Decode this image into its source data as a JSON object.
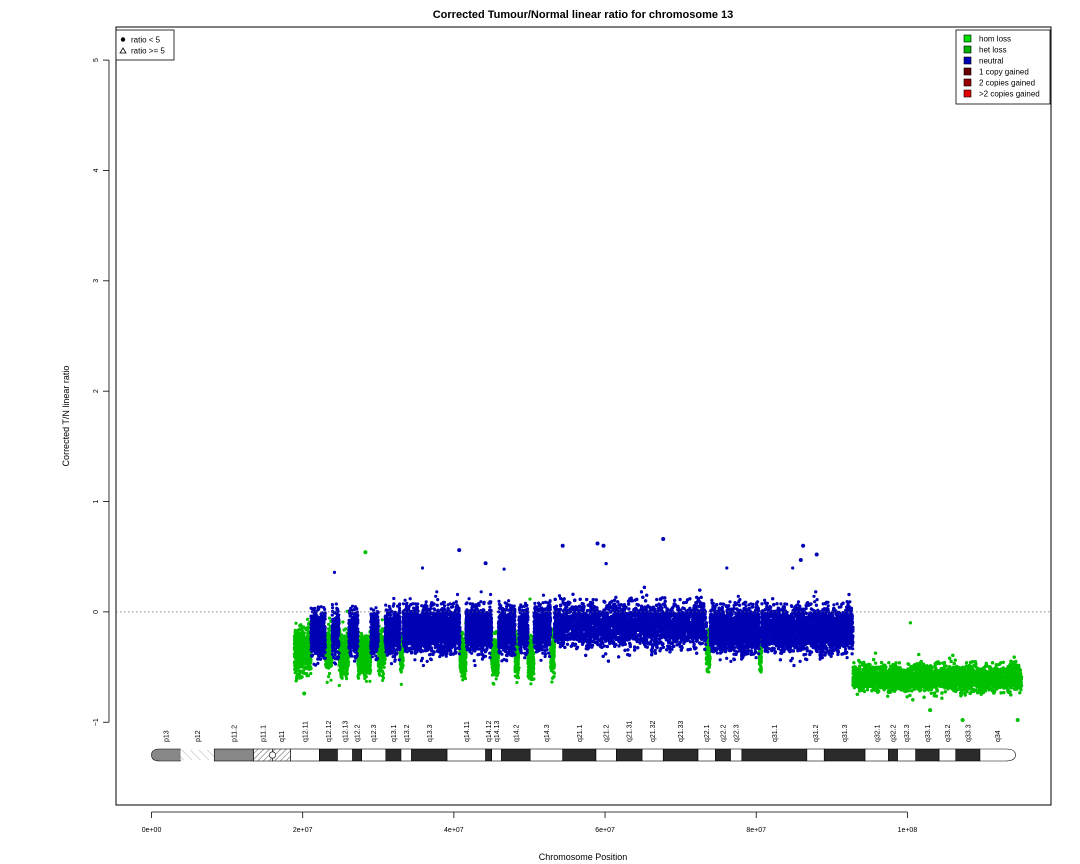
{
  "chart_data": {
    "type": "scatter",
    "title": "Corrected Tumour/Normal linear ratio for chromosome  13",
    "xlabel": "Chromosome Position",
    "ylabel": "Corrected T/N linear ratio",
    "xlim": [
      -4700000,
      119000000
    ],
    "ylim": [
      -1.75,
      5.3
    ],
    "x_ticks": [
      0,
      20000000,
      40000000,
      60000000,
      80000000,
      100000000
    ],
    "x_tick_labels": [
      "0e+00",
      "2e+07",
      "4e+07",
      "6e+07",
      "8e+07",
      "1e+08"
    ],
    "y_ticks": [
      -1,
      0,
      1,
      2,
      3,
      4,
      5
    ],
    "y_tick_labels": [
      "−1",
      "0",
      "1",
      "2",
      "3",
      "4",
      "5"
    ],
    "reference_line": 0,
    "shape_legend": [
      {
        "symbol": "●",
        "label": "ratio < 5"
      },
      {
        "symbol": "△",
        "label": "ratio >= 5"
      }
    ],
    "legend": [
      {
        "label": "hom loss",
        "color": "#00e000"
      },
      {
        "label": "het loss",
        "color": "#00b000"
      },
      {
        "label": "neutral",
        "color": "#0000b4"
      },
      {
        "label": "1 copy gained",
        "color": "#6b0000"
      },
      {
        "label": "2 copies gained",
        "color": "#9a0000"
      },
      {
        "label": ">2 copies gained",
        "color": "#e00000"
      }
    ],
    "series": [
      {
        "name": "het loss",
        "color": "#00c000",
        "segments": [
          {
            "x": [
              18900000,
              21100000
            ],
            "center": -0.34,
            "spread": 0.2
          },
          {
            "x": [
              23000000,
              23900000
            ],
            "center": -0.36,
            "spread": 0.18
          },
          {
            "x": [
              24800000,
              26100000
            ],
            "center": -0.38,
            "spread": 0.18
          },
          {
            "x": [
              27300000,
              29000000
            ],
            "center": -0.4,
            "spread": 0.18
          },
          {
            "x": [
              30000000,
              30900000
            ],
            "center": -0.38,
            "spread": 0.18
          },
          {
            "x": [
              32900000,
              33300000
            ],
            "center": -0.38,
            "spread": 0.17
          },
          {
            "x": [
              40800000,
              41600000
            ],
            "center": -0.4,
            "spread": 0.19
          },
          {
            "x": [
              45000000,
              45900000
            ],
            "center": -0.4,
            "spread": 0.18
          },
          {
            "x": [
              48100000,
              48600000
            ],
            "center": -0.4,
            "spread": 0.18
          },
          {
            "x": [
              49800000,
              50600000
            ],
            "center": -0.42,
            "spread": 0.17
          },
          {
            "x": [
              52800000,
              53300000
            ],
            "center": -0.4,
            "spread": 0.18
          },
          {
            "x": [
              73400000,
              73900000
            ],
            "center": -0.36,
            "spread": 0.18
          },
          {
            "x": [
              80400000,
              80700000
            ],
            "center": -0.36,
            "spread": 0.17
          },
          {
            "x": [
              92800000,
              115100000
            ],
            "center": -0.6,
            "spread": 0.12
          }
        ]
      },
      {
        "name": "neutral",
        "color": "#0000b4",
        "segments": [
          {
            "x": [
              21100000,
              23000000
            ],
            "center": -0.2,
            "spread": 0.2
          },
          {
            "x": [
              23900000,
              24800000
            ],
            "center": -0.2,
            "spread": 0.2
          },
          {
            "x": [
              26100000,
              27300000
            ],
            "center": -0.2,
            "spread": 0.2
          },
          {
            "x": [
              29000000,
              30000000
            ],
            "center": -0.2,
            "spread": 0.2
          },
          {
            "x": [
              30900000,
              32900000
            ],
            "center": -0.18,
            "spread": 0.2
          },
          {
            "x": [
              33300000,
              40800000
            ],
            "center": -0.16,
            "spread": 0.2
          },
          {
            "x": [
              41600000,
              45000000
            ],
            "center": -0.16,
            "spread": 0.2
          },
          {
            "x": [
              45900000,
              48100000
            ],
            "center": -0.17,
            "spread": 0.2
          },
          {
            "x": [
              48600000,
              49800000
            ],
            "center": -0.17,
            "spread": 0.2
          },
          {
            "x": [
              50600000,
              52800000
            ],
            "center": -0.15,
            "spread": 0.2
          },
          {
            "x": [
              53300000,
              73400000
            ],
            "center": -0.12,
            "spread": 0.2
          },
          {
            "x": [
              73900000,
              80400000
            ],
            "center": -0.16,
            "spread": 0.2
          },
          {
            "x": [
              80700000,
              92800000
            ],
            "center": -0.16,
            "spread": 0.2
          }
        ]
      }
    ],
    "outliers": [
      {
        "x": 28300000,
        "y": 0.54,
        "color": "#00c000"
      },
      {
        "x": 40700000,
        "y": 0.56,
        "color": "#0000b4"
      },
      {
        "x": 54400000,
        "y": 0.6,
        "color": "#0000b4"
      },
      {
        "x": 59000000,
        "y": 0.62,
        "color": "#0000b4"
      },
      {
        "x": 59800000,
        "y": 0.6,
        "color": "#0000b4"
      },
      {
        "x": 67700000,
        "y": 0.66,
        "color": "#0000b4"
      },
      {
        "x": 86200000,
        "y": 0.6,
        "color": "#0000b4"
      },
      {
        "x": 88000000,
        "y": 0.52,
        "color": "#0000b4"
      },
      {
        "x": 85900000,
        "y": 0.47,
        "color": "#0000b4"
      },
      {
        "x": 44200000,
        "y": 0.44,
        "color": "#0000b4"
      },
      {
        "x": 114600000,
        "y": -0.98,
        "color": "#00c000"
      },
      {
        "x": 107300000,
        "y": -0.98,
        "color": "#00c000"
      },
      {
        "x": 103000000,
        "y": -0.89,
        "color": "#00c000"
      },
      {
        "x": 20200000,
        "y": -0.74,
        "color": "#00c000"
      }
    ],
    "ideogram": {
      "bands": [
        {
          "name": "p13",
          "start": 0,
          "end": 3800000,
          "stain": "cen-p"
        },
        {
          "name": "p12",
          "start": 3800000,
          "end": 8300000,
          "stain": "stalk"
        },
        {
          "name": "p11.2",
          "start": 8300000,
          "end": 13500000,
          "stain": "gvar"
        },
        {
          "name": "p11.1",
          "start": 13500000,
          "end": 16000000,
          "stain": "hatch"
        },
        {
          "name": "q11",
          "start": 16000000,
          "end": 18400000,
          "stain": "hatch"
        },
        {
          "name": "q12.11",
          "start": 18400000,
          "end": 22200000,
          "stain": "gneg"
        },
        {
          "name": "q12.12",
          "start": 22200000,
          "end": 24600000,
          "stain": "gpos"
        },
        {
          "name": "q12.13",
          "start": 24600000,
          "end": 26600000,
          "stain": "gneg"
        },
        {
          "name": "q12.2",
          "start": 26600000,
          "end": 27800000,
          "stain": "gpos"
        },
        {
          "name": "q12.3",
          "start": 27800000,
          "end": 31000000,
          "stain": "gneg"
        },
        {
          "name": "q13.1",
          "start": 31000000,
          "end": 33000000,
          "stain": "gpos"
        },
        {
          "name": "q13.2",
          "start": 33000000,
          "end": 34400000,
          "stain": "gneg"
        },
        {
          "name": "q13.3",
          "start": 34400000,
          "end": 39100000,
          "stain": "gpos"
        },
        {
          "name": "q14.11",
          "start": 39100000,
          "end": 44200000,
          "stain": "gneg"
        },
        {
          "name": "q14.12",
          "start": 44200000,
          "end": 45000000,
          "stain": "gpos"
        },
        {
          "name": "q14.13",
          "start": 45000000,
          "end": 46300000,
          "stain": "gneg"
        },
        {
          "name": "q14.2",
          "start": 46300000,
          "end": 50100000,
          "stain": "gpos"
        },
        {
          "name": "q14.3",
          "start": 50100000,
          "end": 54400000,
          "stain": "gneg"
        },
        {
          "name": "q21.1",
          "start": 54400000,
          "end": 58800000,
          "stain": "gpos"
        },
        {
          "name": "q21.2",
          "start": 58800000,
          "end": 61500000,
          "stain": "gneg"
        },
        {
          "name": "q21.31",
          "start": 61500000,
          "end": 64900000,
          "stain": "gpos"
        },
        {
          "name": "q21.32",
          "start": 64900000,
          "end": 67700000,
          "stain": "gneg"
        },
        {
          "name": "q21.33",
          "start": 67700000,
          "end": 72300000,
          "stain": "gpos"
        },
        {
          "name": "q22.1",
          "start": 72300000,
          "end": 74600000,
          "stain": "gneg"
        },
        {
          "name": "q22.2",
          "start": 74600000,
          "end": 76600000,
          "stain": "gpos"
        },
        {
          "name": "q22.3",
          "start": 76600000,
          "end": 78100000,
          "stain": "gneg"
        },
        {
          "name": "q31.1",
          "start": 78100000,
          "end": 86700000,
          "stain": "gpos"
        },
        {
          "name": "q31.2",
          "start": 86700000,
          "end": 89000000,
          "stain": "gneg"
        },
        {
          "name": "q31.3",
          "start": 89000000,
          "end": 94400000,
          "stain": "gpos"
        },
        {
          "name": "q32.1",
          "start": 94400000,
          "end": 97500000,
          "stain": "gneg"
        },
        {
          "name": "q32.2",
          "start": 97500000,
          "end": 98700000,
          "stain": "gpos"
        },
        {
          "name": "q32.3",
          "start": 98700000,
          "end": 101100000,
          "stain": "gneg"
        },
        {
          "name": "q33.1",
          "start": 101100000,
          "end": 104200000,
          "stain": "gpos"
        },
        {
          "name": "q33.2",
          "start": 104200000,
          "end": 106400000,
          "stain": "gneg"
        },
        {
          "name": "q33.3",
          "start": 106400000,
          "end": 109600000,
          "stain": "gpos"
        },
        {
          "name": "q34",
          "start": 109600000,
          "end": 114300000,
          "stain": "gneg-q"
        }
      ]
    }
  }
}
